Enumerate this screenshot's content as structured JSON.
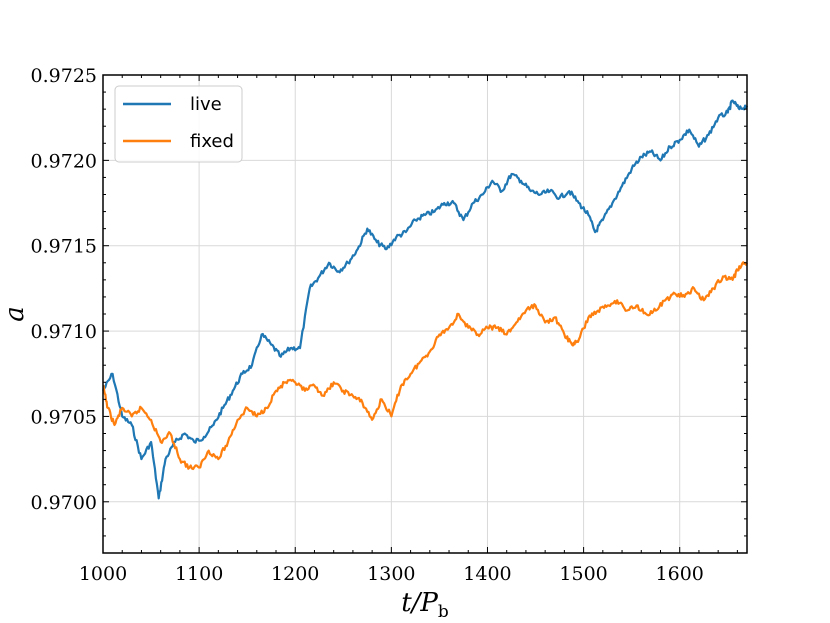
{
  "chart_data": {
    "type": "line",
    "xlabel_main": "t/P",
    "xlabel_sub": "b",
    "ylabel": "a",
    "xlim": [
      1000,
      1670
    ],
    "ylim": [
      0.9697,
      0.9725
    ],
    "xticks": [
      1000,
      1100,
      1200,
      1300,
      1400,
      1500,
      1600
    ],
    "xtick_labels": [
      "1000",
      "1100",
      "1200",
      "1300",
      "1400",
      "1500",
      "1600"
    ],
    "yticks": [
      0.97,
      0.9705,
      0.971,
      0.9715,
      0.972,
      0.9725
    ],
    "ytick_labels": [
      "0.9700",
      "0.9705",
      "0.9710",
      "0.9715",
      "0.9720",
      "0.9725"
    ],
    "grid": true,
    "legend_position": "top-left",
    "series": [
      {
        "name": "live",
        "color": "#1f77b4",
        "x": [
          1000,
          1010,
          1020,
          1030,
          1040,
          1050,
          1058,
          1065,
          1075,
          1085,
          1095,
          1105,
          1115,
          1125,
          1135,
          1145,
          1155,
          1165,
          1175,
          1185,
          1195,
          1205,
          1215,
          1225,
          1235,
          1245,
          1255,
          1265,
          1275,
          1285,
          1295,
          1305,
          1315,
          1325,
          1335,
          1345,
          1355,
          1365,
          1375,
          1385,
          1395,
          1405,
          1415,
          1425,
          1435,
          1445,
          1455,
          1465,
          1475,
          1485,
          1495,
          1505,
          1512,
          1520,
          1530,
          1540,
          1550,
          1560,
          1570,
          1580,
          1590,
          1600,
          1610,
          1620,
          1630,
          1640,
          1650,
          1655,
          1662,
          1670
        ],
        "y": [
          0.97065,
          0.97075,
          0.9705,
          0.97045,
          0.97025,
          0.97035,
          0.97002,
          0.97025,
          0.97035,
          0.9704,
          0.97035,
          0.97038,
          0.97045,
          0.97055,
          0.97065,
          0.97075,
          0.9708,
          0.97098,
          0.97092,
          0.97085,
          0.9709,
          0.9709,
          0.97125,
          0.97132,
          0.9714,
          0.97135,
          0.9714,
          0.97148,
          0.9716,
          0.97152,
          0.97148,
          0.97155,
          0.97158,
          0.97165,
          0.97168,
          0.9717,
          0.97175,
          0.97175,
          0.97165,
          0.97175,
          0.9718,
          0.97188,
          0.97182,
          0.97192,
          0.97188,
          0.97182,
          0.9718,
          0.97182,
          0.97178,
          0.97182,
          0.97175,
          0.97168,
          0.97158,
          0.97165,
          0.97175,
          0.97185,
          0.97195,
          0.97202,
          0.97205,
          0.972,
          0.97208,
          0.97212,
          0.97218,
          0.97208,
          0.97215,
          0.97225,
          0.97228,
          0.97235,
          0.9723,
          0.97232
        ]
      },
      {
        "name": "fixed",
        "color": "#ff7f0e",
        "x": [
          1000,
          1005,
          1012,
          1020,
          1030,
          1040,
          1050,
          1060,
          1070,
          1080,
          1090,
          1100,
          1110,
          1120,
          1130,
          1140,
          1150,
          1160,
          1170,
          1180,
          1190,
          1200,
          1210,
          1220,
          1230,
          1240,
          1250,
          1260,
          1270,
          1280,
          1290,
          1300,
          1310,
          1320,
          1330,
          1340,
          1350,
          1360,
          1370,
          1380,
          1390,
          1400,
          1410,
          1420,
          1430,
          1440,
          1450,
          1460,
          1470,
          1480,
          1488,
          1495,
          1505,
          1515,
          1525,
          1535,
          1545,
          1555,
          1565,
          1575,
          1585,
          1595,
          1605,
          1615,
          1625,
          1635,
          1645,
          1655,
          1662,
          1670
        ],
        "y": [
          0.97068,
          0.97055,
          0.97045,
          0.97055,
          0.9705,
          0.97055,
          0.97048,
          0.97035,
          0.9704,
          0.97025,
          0.9702,
          0.9702,
          0.9703,
          0.97025,
          0.97035,
          0.97048,
          0.97055,
          0.9705,
          0.97055,
          0.97065,
          0.9707,
          0.9707,
          0.97065,
          0.97068,
          0.97062,
          0.9707,
          0.97065,
          0.97062,
          0.97058,
          0.97048,
          0.9706,
          0.9705,
          0.97068,
          0.97075,
          0.97082,
          0.97088,
          0.97098,
          0.97102,
          0.9711,
          0.97102,
          0.97098,
          0.97102,
          0.97102,
          0.97098,
          0.97105,
          0.97112,
          0.97115,
          0.97105,
          0.97108,
          0.97098,
          0.97092,
          0.97095,
          0.97108,
          0.97112,
          0.97115,
          0.97118,
          0.97112,
          0.97115,
          0.9711,
          0.97112,
          0.97118,
          0.97122,
          0.9712,
          0.97125,
          0.97118,
          0.97125,
          0.97132,
          0.9713,
          0.97138,
          0.9714
        ]
      }
    ]
  }
}
